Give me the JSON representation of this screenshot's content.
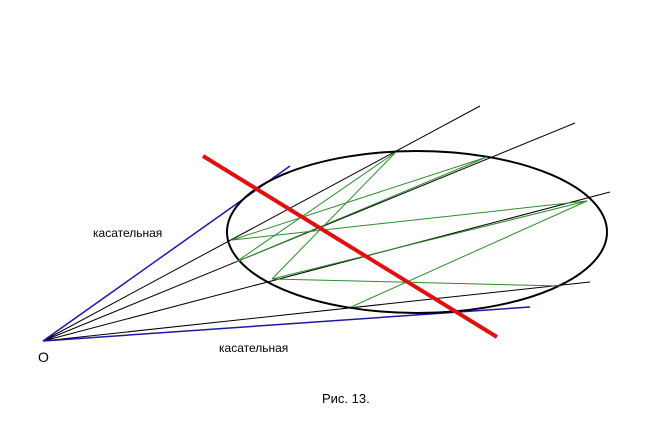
{
  "labels": {
    "tangent_upper": "касательная",
    "tangent_lower": "касательная",
    "origin": "O",
    "caption": "Рис. 13."
  },
  "colors": {
    "ellipse": "#000000",
    "secant": "#000000",
    "tangent": "#1a1aa6",
    "chord": "#2e8b2e",
    "polar": "#e01010"
  }
}
